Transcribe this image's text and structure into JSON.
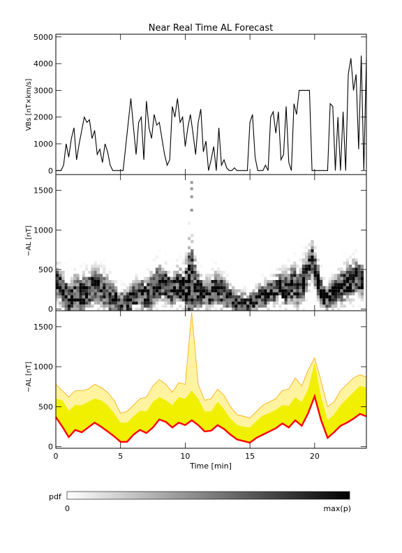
{
  "chart_data": {
    "title": "Near Real Time AL Forecast",
    "xlabel": "Time [min]",
    "xlim": [
      0,
      24
    ],
    "x_ticks": [
      0,
      5,
      10,
      15,
      20
    ],
    "panels": [
      {
        "id": "vbs",
        "type": "line",
        "ylabel": "VBs [nT×km/s]",
        "ylim": [
          -150,
          5100
        ],
        "y_ticks": [
          0,
          1000,
          2000,
          3000,
          4000,
          5000
        ],
        "series": [
          {
            "color": "#000000",
            "x": [
              0,
              0.4,
              0.6,
              0.8,
              1.0,
              1.2,
              1.4,
              1.6,
              1.8,
              2.0,
              2.2,
              2.4,
              2.6,
              2.8,
              3.0,
              3.2,
              3.4,
              3.6,
              3.8,
              4.0,
              4.2,
              4.4,
              4.6,
              4.8,
              5.0,
              5.2,
              5.6,
              5.8,
              6.0,
              6.2,
              6.4,
              6.6,
              6.8,
              7.0,
              7.2,
              7.4,
              7.6,
              7.8,
              8.0,
              8.2,
              8.4,
              8.6,
              8.8,
              9.0,
              9.2,
              9.4,
              9.6,
              9.8,
              10.0,
              10.2,
              10.4,
              10.6,
              10.8,
              11.0,
              11.2,
              11.4,
              11.6,
              11.8,
              12.0,
              12.2,
              12.4,
              12.6,
              12.8,
              13.0,
              13.2,
              13.4,
              13.6,
              13.8,
              14.0,
              14.2,
              14.4,
              14.6,
              14.8,
              15.0,
              15.2,
              15.4,
              15.6,
              15.8,
              16.0,
              16.2,
              16.4,
              16.6,
              16.8,
              17.0,
              17.2,
              17.4,
              17.6,
              17.8,
              18.0,
              18.2,
              18.4,
              18.6,
              18.8,
              19.0,
              19.2,
              19.4,
              19.6,
              19.8,
              20.0,
              20.2,
              20.4,
              20.6,
              20.8,
              21.0,
              21.2,
              21.4,
              21.6,
              21.8,
              22.0,
              22.2,
              22.4,
              22.6,
              22.8,
              23.0,
              23.2,
              23.4,
              23.6,
              23.8,
              24.0
            ],
            "y": [
              0,
              0,
              200,
              1000,
              500,
              1200,
              1600,
              400,
              1000,
              1500,
              2000,
              1800,
              1900,
              1200,
              1500,
              600,
              800,
              300,
              1000,
              700,
              200,
              0,
              0,
              0,
              0,
              0,
              1800,
              2700,
              1600,
              600,
              1800,
              2000,
              400,
              2600,
              1600,
              1200,
              2100,
              1700,
              1800,
              1200,
              600,
              200,
              400,
              2400,
              2000,
              2700,
              1800,
              2000,
              900,
              1600,
              2100,
              1400,
              600,
              1800,
              2300,
              700,
              1100,
              0,
              400,
              900,
              0,
              1600,
              200,
              400,
              100,
              0,
              0,
              100,
              0,
              0,
              0,
              0,
              0,
              1800,
              2100,
              500,
              0,
              0,
              0,
              200,
              0,
              2000,
              2200,
              1400,
              2200,
              400,
              600,
              2400,
              300,
              0,
              2500,
              2100,
              3000,
              3000,
              3000,
              3000,
              3000,
              0,
              0,
              0,
              0,
              0,
              0,
              0,
              2500,
              2400,
              0,
              2000,
              0,
              2200,
              0,
              3600,
              4200,
              3000,
              3600,
              800,
              4300,
              0,
              4200
            ]
          }
        ]
      },
      {
        "id": "al-pdf",
        "type": "heatmap",
        "ylabel": "−AL [nT]",
        "ylim": [
          -20,
          1700
        ],
        "y_ticks": [
          0,
          500,
          1000,
          1500
        ],
        "value_scale": "pdf, 0 = white to max(p) = black"
      },
      {
        "id": "al-ensemble",
        "type": "area",
        "ylabel": "−AL [nT]",
        "ylim": [
          -20,
          1700
        ],
        "y_ticks": [
          0,
          500,
          1000,
          1500
        ],
        "x": [
          0,
          0.5,
          1.0,
          1.5,
          2.0,
          2.5,
          3.0,
          3.5,
          4.0,
          4.5,
          5.0,
          5.5,
          6.0,
          6.5,
          7.0,
          7.5,
          8.0,
          8.5,
          9.0,
          9.5,
          10.0,
          10.5,
          11.0,
          11.5,
          12.0,
          12.5,
          13.0,
          13.5,
          14.0,
          14.5,
          15.0,
          15.5,
          16.0,
          16.5,
          17.0,
          17.5,
          18.0,
          18.5,
          19.0,
          19.5,
          20.0,
          20.5,
          21.0,
          21.5,
          22.0,
          22.5,
          23.0,
          23.5,
          24.0
        ],
        "series": [
          {
            "name": "",
            "color": "#ff0000",
            "values": [
              370,
              250,
              120,
              210,
              180,
              240,
              300,
              250,
              190,
              130,
              60,
              60,
              150,
              210,
              170,
              240,
              340,
              310,
              240,
              300,
              270,
              330,
              270,
              190,
              200,
              270,
              220,
              150,
              90,
              70,
              50,
              110,
              150,
              190,
              230,
              290,
              240,
              330,
              260,
              420,
              630,
              330,
              110,
              180,
              260,
              300,
              350,
              410,
              380
            ]
          },
          {
            "name": "",
            "color": "#f0f000",
            "values": [
              600,
              580,
              450,
              520,
              520,
              560,
              600,
              580,
              520,
              420,
              300,
              300,
              380,
              450,
              440,
              560,
              620,
              580,
              520,
              620,
              600,
              700,
              600,
              440,
              440,
              560,
              470,
              350,
              270,
              250,
              240,
              320,
              390,
              420,
              460,
              520,
              510,
              620,
              560,
              720,
              1050,
              620,
              330,
              400,
              520,
              600,
              680,
              760,
              740
            ]
          },
          {
            "name": "",
            "color": "#ffa500",
            "values": [
              780,
              700,
              620,
              700,
              700,
              720,
              780,
              740,
              680,
              580,
              420,
              440,
              520,
              600,
              620,
              760,
              840,
              780,
              680,
              800,
              780,
              1680,
              780,
              580,
              600,
              720,
              640,
              500,
              400,
              380,
              360,
              440,
              520,
              560,
              600,
              700,
              720,
              860,
              760,
              960,
              1110,
              820,
              500,
              560,
              700,
              780,
              860,
              900,
              870
            ]
          }
        ]
      }
    ],
    "colorbar": {
      "label": "pdf",
      "min_label": "0",
      "max_label": "max(p)"
    }
  }
}
